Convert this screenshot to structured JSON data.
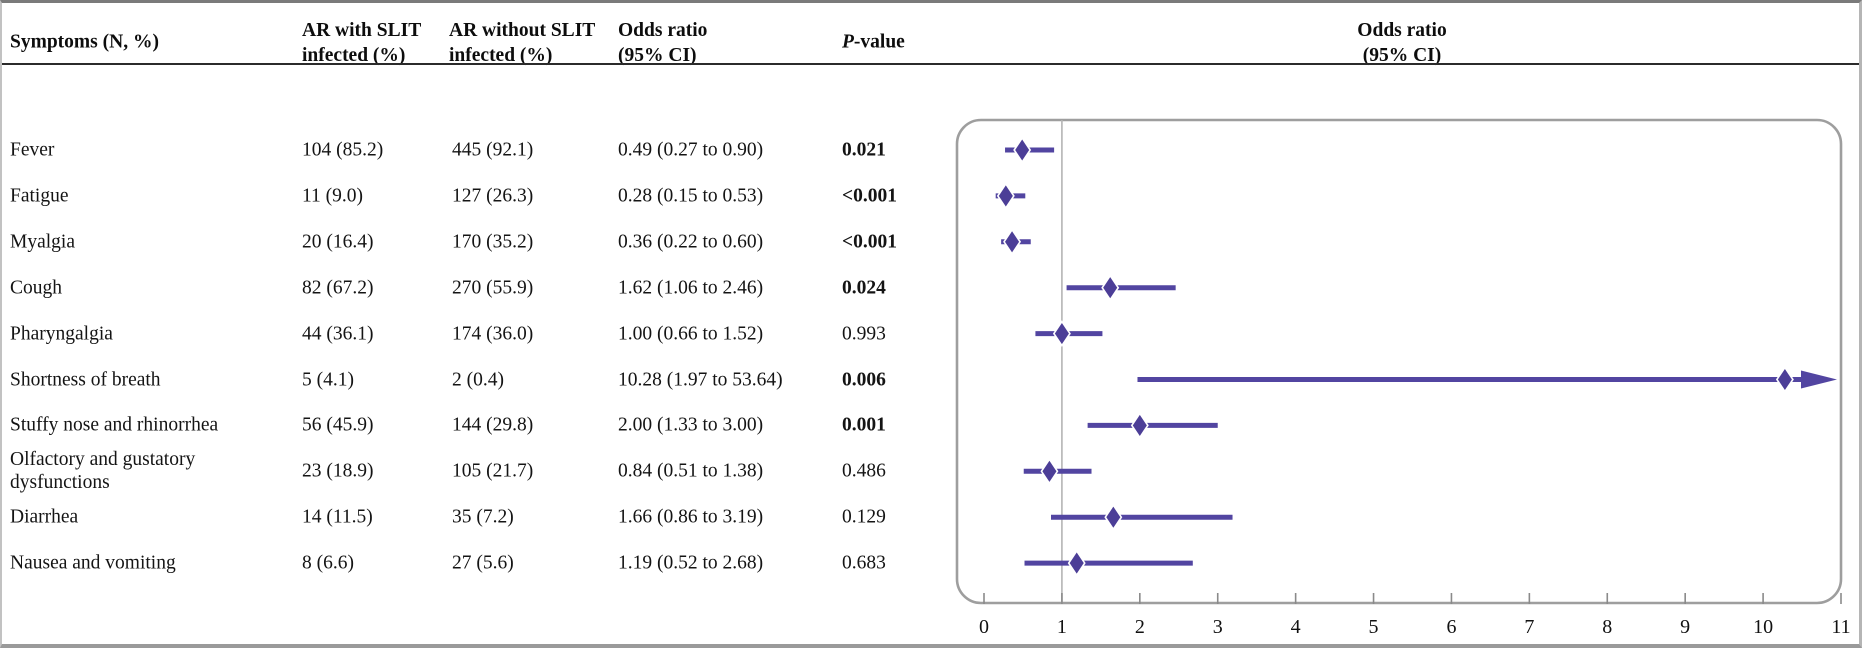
{
  "header": {
    "symptoms_col": "Symptoms (N, %)",
    "with_slit_line1": "AR with SLIT",
    "with_slit_line2": "infected (%)",
    "without_slit_line1": "AR without SLIT",
    "without_slit_line2": "infected (%)",
    "or_line1": "Odds ratio",
    "or_line2": "(95% CI)",
    "p_italic": "P",
    "p_rest": "-value",
    "plot_title_line1": "Odds ratio",
    "plot_title_line2": "(95% CI)"
  },
  "rows": [
    {
      "label": "Fever",
      "with_slit": "104 (85.2)",
      "without_slit": "445 (92.1)",
      "or_ci": "0.49 (0.27 to 0.90)",
      "p": "0.021",
      "p_bold": true
    },
    {
      "label": "Fatigue",
      "with_slit": "11 (9.0)",
      "without_slit": "127 (26.3)",
      "or_ci": "0.28 (0.15 to 0.53)",
      "p": "<0.001",
      "p_bold": true
    },
    {
      "label": "Myalgia",
      "with_slit": "20 (16.4)",
      "without_slit": "170 (35.2)",
      "or_ci": "0.36 (0.22 to 0.60)",
      "p": "<0.001",
      "p_bold": true
    },
    {
      "label": "Cough",
      "with_slit": "82 (67.2)",
      "without_slit": "270 (55.9)",
      "or_ci": "1.62 (1.06 to 2.46)",
      "p": "0.024",
      "p_bold": true
    },
    {
      "label": "Pharyngalgia",
      "with_slit": "44 (36.1)",
      "without_slit": "174 (36.0)",
      "or_ci": "1.00 (0.66 to 1.52)",
      "p": "0.993",
      "p_bold": false
    },
    {
      "label": "Shortness of breath",
      "with_slit": "5 (4.1)",
      "without_slit": "2 (0.4)",
      "or_ci": "10.28 (1.97 to 53.64)",
      "p": "0.006",
      "p_bold": true
    },
    {
      "label": "Stuffy nose and rhinorrhea",
      "with_slit": "56 (45.9)",
      "without_slit": "144 (29.8)",
      "or_ci": "2.00 (1.33 to 3.00)",
      "p": "0.001",
      "p_bold": true
    },
    {
      "label": "Olfactory and gustatory dysfunctions",
      "with_slit": "23 (18.9)",
      "without_slit": "105 (21.7)",
      "or_ci": "0.84 (0.51 to 1.38)",
      "p": "0.486",
      "p_bold": false
    },
    {
      "label": "Diarrhea",
      "with_slit": "14 (11.5)",
      "without_slit": "35 (7.2)",
      "or_ci": "1.66 (0.86 to 3.19)",
      "p": "0.129",
      "p_bold": false
    },
    {
      "label": "Nausea and vomiting",
      "with_slit": "8 (6.6)",
      "without_slit": "27 (5.6)",
      "or_ci": "1.19 (0.52 to 2.68)",
      "p": "0.683",
      "p_bold": false
    }
  ],
  "chart_data": {
    "type": "scatter",
    "subtype": "forest-plot",
    "title": "Odds ratio (95% CI)",
    "categories": [
      "Fever",
      "Fatigue",
      "Myalgia",
      "Cough",
      "Pharyngalgia",
      "Shortness of breath",
      "Stuffy nose and rhinorrhea",
      "Olfactory and gustatory dysfunctions",
      "Diarrhea",
      "Nausea and vomiting"
    ],
    "series": [
      {
        "name": "Odds ratio",
        "values": [
          0.49,
          0.28,
          0.36,
          1.62,
          1.0,
          10.28,
          2.0,
          0.84,
          1.66,
          1.19
        ]
      }
    ],
    "ci_lower": [
      0.27,
      0.15,
      0.22,
      1.06,
      0.66,
      1.97,
      1.33,
      0.51,
      0.86,
      0.52
    ],
    "ci_upper": [
      0.9,
      0.53,
      0.6,
      2.46,
      1.52,
      53.64,
      3.0,
      1.38,
      3.19,
      2.68
    ],
    "xlim": [
      0,
      11
    ],
    "x_ticks": [
      "0",
      "1",
      "2",
      "3",
      "4",
      "5",
      "6",
      "7",
      "8",
      "9",
      "10",
      "11"
    ],
    "reference_line_x": 1,
    "clamped_upper_arrow_indices": [
      5
    ],
    "marker": "diamond",
    "accent_color": "#5245A1",
    "diamond_color": "#4C3E97",
    "reference_line_color": "#b4b4b4",
    "panel_border_color": "#9e9e9e",
    "grid": false,
    "legend": false
  }
}
